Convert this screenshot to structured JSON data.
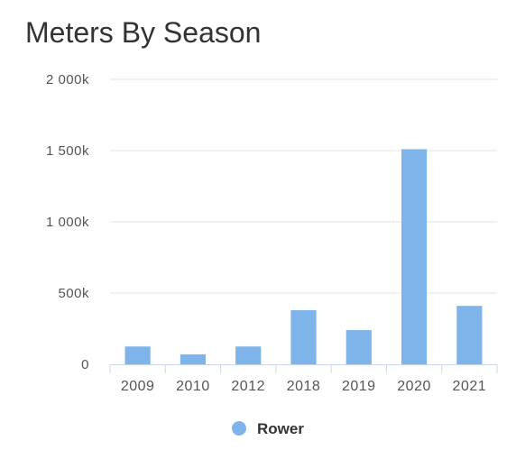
{
  "chart_data": {
    "type": "bar",
    "title": "Meters By Season",
    "xlabel": "",
    "ylabel": "",
    "categories": [
      "2009",
      "2010",
      "2012",
      "2018",
      "2019",
      "2020",
      "2021"
    ],
    "series": [
      {
        "name": "Rower",
        "values": [
          125000,
          70000,
          125000,
          380000,
          240000,
          1510000,
          410000
        ],
        "color": "#7fb4ea"
      }
    ],
    "ylim": [
      0,
      2000000
    ],
    "yticks": [
      0,
      500000,
      1000000,
      1500000,
      2000000
    ],
    "ytick_labels": [
      "0",
      "500k",
      "1 000k",
      "1 500k",
      "2 000k"
    ],
    "grid": true,
    "legend_position": "bottom-center"
  }
}
